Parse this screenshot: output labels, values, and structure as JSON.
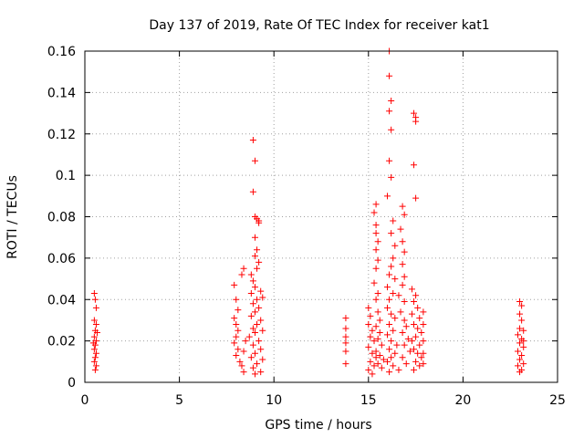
{
  "chart_data": {
    "type": "scatter",
    "title": "Day 137 of 2019, Rate Of TEC Index for receiver kat1",
    "xlabel": "GPS time / hours",
    "ylabel": "ROTI / TECUs",
    "xlim": [
      0,
      25
    ],
    "ylim": [
      0,
      0.16
    ],
    "grid": true,
    "marker": "+",
    "color": "#ff0000",
    "x_ticks": [
      0,
      5,
      10,
      15,
      20,
      25
    ],
    "x_tick_labels": [
      "0",
      "5",
      "10",
      "15",
      "20",
      "25"
    ],
    "y_ticks": [
      0,
      0.02,
      0.04,
      0.06,
      0.08,
      0.1,
      0.12,
      0.14,
      0.16
    ],
    "y_tick_labels": [
      "0",
      "0.02",
      "0.04",
      "0.06",
      "0.08",
      "0.1",
      "0.12",
      "0.14",
      "0.16"
    ],
    "series": [
      {
        "name": "ROTI",
        "points": [
          [
            0.5,
            0.043
          ],
          [
            0.55,
            0.04
          ],
          [
            0.6,
            0.036
          ],
          [
            0.5,
            0.03
          ],
          [
            0.6,
            0.028
          ],
          [
            0.55,
            0.025
          ],
          [
            0.5,
            0.022
          ],
          [
            0.6,
            0.02
          ],
          [
            0.55,
            0.018
          ],
          [
            0.5,
            0.016
          ],
          [
            0.6,
            0.014
          ],
          [
            0.55,
            0.012
          ],
          [
            0.5,
            0.01
          ],
          [
            0.6,
            0.008
          ],
          [
            0.55,
            0.006
          ],
          [
            0.65,
            0.024
          ],
          [
            0.45,
            0.019
          ],
          [
            7.9,
            0.047
          ],
          [
            8.0,
            0.04
          ],
          [
            8.1,
            0.035
          ],
          [
            7.9,
            0.031
          ],
          [
            8.0,
            0.028
          ],
          [
            8.1,
            0.025
          ],
          [
            8.0,
            0.022
          ],
          [
            7.9,
            0.019
          ],
          [
            8.1,
            0.016
          ],
          [
            8.0,
            0.013
          ],
          [
            8.2,
            0.01
          ],
          [
            8.3,
            0.008
          ],
          [
            8.4,
            0.005
          ],
          [
            8.3,
            0.052
          ],
          [
            8.4,
            0.055
          ],
          [
            8.5,
            0.02
          ],
          [
            8.4,
            0.015
          ],
          [
            8.9,
            0.117
          ],
          [
            9.0,
            0.107
          ],
          [
            8.9,
            0.092
          ],
          [
            9.0,
            0.08
          ],
          [
            9.1,
            0.079
          ],
          [
            9.2,
            0.078
          ],
          [
            9.2,
            0.077
          ],
          [
            9.0,
            0.07
          ],
          [
            9.1,
            0.064
          ],
          [
            9.0,
            0.061
          ],
          [
            9.2,
            0.058
          ],
          [
            9.1,
            0.055
          ],
          [
            8.8,
            0.052
          ],
          [
            8.9,
            0.049
          ],
          [
            9.0,
            0.046
          ],
          [
            8.8,
            0.043
          ],
          [
            9.3,
            0.044
          ],
          [
            9.4,
            0.041
          ],
          [
            9.1,
            0.04
          ],
          [
            8.9,
            0.038
          ],
          [
            9.2,
            0.036
          ],
          [
            9.0,
            0.034
          ],
          [
            8.8,
            0.032
          ],
          [
            9.3,
            0.03
          ],
          [
            9.1,
            0.028
          ],
          [
            8.9,
            0.026
          ],
          [
            9.4,
            0.025
          ],
          [
            9.0,
            0.024
          ],
          [
            8.7,
            0.022
          ],
          [
            9.2,
            0.02
          ],
          [
            8.9,
            0.018
          ],
          [
            9.3,
            0.016
          ],
          [
            9.0,
            0.014
          ],
          [
            8.8,
            0.012
          ],
          [
            9.4,
            0.011
          ],
          [
            9.1,
            0.009
          ],
          [
            8.9,
            0.007
          ],
          [
            9.3,
            0.005
          ],
          [
            9.0,
            0.004
          ],
          [
            13.8,
            0.031
          ],
          [
            13.8,
            0.026
          ],
          [
            13.8,
            0.022
          ],
          [
            13.8,
            0.019
          ],
          [
            13.8,
            0.015
          ],
          [
            13.8,
            0.009
          ],
          [
            15.0,
            0.036
          ],
          [
            15.1,
            0.032
          ],
          [
            15.0,
            0.028
          ],
          [
            15.2,
            0.025
          ],
          [
            15.1,
            0.022
          ],
          [
            15.3,
            0.02
          ],
          [
            15.0,
            0.017
          ],
          [
            15.2,
            0.014
          ],
          [
            15.4,
            0.012
          ],
          [
            15.1,
            0.01
          ],
          [
            15.3,
            0.008
          ],
          [
            15.0,
            0.006
          ],
          [
            15.2,
            0.004
          ],
          [
            15.5,
            0.034
          ],
          [
            15.6,
            0.03
          ],
          [
            15.4,
            0.027
          ],
          [
            15.6,
            0.024
          ],
          [
            15.5,
            0.021
          ],
          [
            15.7,
            0.018
          ],
          [
            15.4,
            0.015
          ],
          [
            15.6,
            0.013
          ],
          [
            15.8,
            0.011
          ],
          [
            15.5,
            0.009
          ],
          [
            15.7,
            0.007
          ],
          [
            15.4,
            0.086
          ],
          [
            15.3,
            0.082
          ],
          [
            15.4,
            0.076
          ],
          [
            15.4,
            0.072
          ],
          [
            15.5,
            0.068
          ],
          [
            15.4,
            0.064
          ],
          [
            15.5,
            0.059
          ],
          [
            15.4,
            0.055
          ],
          [
            15.3,
            0.048
          ],
          [
            15.5,
            0.043
          ],
          [
            15.4,
            0.04
          ],
          [
            16.1,
            0.16
          ],
          [
            16.1,
            0.148
          ],
          [
            16.2,
            0.136
          ],
          [
            16.1,
            0.131
          ],
          [
            16.2,
            0.122
          ],
          [
            16.1,
            0.107
          ],
          [
            16.2,
            0.099
          ],
          [
            16.0,
            0.09
          ],
          [
            16.3,
            0.078
          ],
          [
            16.2,
            0.072
          ],
          [
            16.4,
            0.066
          ],
          [
            16.3,
            0.06
          ],
          [
            16.2,
            0.056
          ],
          [
            16.1,
            0.052
          ],
          [
            16.4,
            0.05
          ],
          [
            16.0,
            0.046
          ],
          [
            16.3,
            0.043
          ],
          [
            16.1,
            0.04
          ],
          [
            16.8,
            0.085
          ],
          [
            16.9,
            0.081
          ],
          [
            16.7,
            0.074
          ],
          [
            16.8,
            0.068
          ],
          [
            16.9,
            0.063
          ],
          [
            16.8,
            0.057
          ],
          [
            16.9,
            0.051
          ],
          [
            16.8,
            0.047
          ],
          [
            16.6,
            0.042
          ],
          [
            16.9,
            0.039
          ],
          [
            16.0,
            0.036
          ],
          [
            16.2,
            0.033
          ],
          [
            16.4,
            0.031
          ],
          [
            16.1,
            0.028
          ],
          [
            16.3,
            0.025
          ],
          [
            16.0,
            0.023
          ],
          [
            16.2,
            0.02
          ],
          [
            16.5,
            0.018
          ],
          [
            16.1,
            0.016
          ],
          [
            16.4,
            0.014
          ],
          [
            16.2,
            0.012
          ],
          [
            16.0,
            0.01
          ],
          [
            16.3,
            0.008
          ],
          [
            16.6,
            0.006
          ],
          [
            16.1,
            0.005
          ],
          [
            16.7,
            0.034
          ],
          [
            16.9,
            0.03
          ],
          [
            17.0,
            0.027
          ],
          [
            16.8,
            0.024
          ],
          [
            17.1,
            0.021
          ],
          [
            16.9,
            0.018
          ],
          [
            17.2,
            0.015
          ],
          [
            16.8,
            0.012
          ],
          [
            17.0,
            0.009
          ],
          [
            17.4,
            0.13
          ],
          [
            17.5,
            0.128
          ],
          [
            17.5,
            0.126
          ],
          [
            17.4,
            0.105
          ],
          [
            17.5,
            0.089
          ],
          [
            17.3,
            0.045
          ],
          [
            17.5,
            0.042
          ],
          [
            17.4,
            0.039
          ],
          [
            17.6,
            0.036
          ],
          [
            17.3,
            0.033
          ],
          [
            17.7,
            0.031
          ],
          [
            17.4,
            0.028
          ],
          [
            17.6,
            0.026
          ],
          [
            17.8,
            0.024
          ],
          [
            17.5,
            0.022
          ],
          [
            17.3,
            0.02
          ],
          [
            17.7,
            0.018
          ],
          [
            17.4,
            0.016
          ],
          [
            17.6,
            0.014
          ],
          [
            17.8,
            0.012
          ],
          [
            17.5,
            0.01
          ],
          [
            17.7,
            0.008
          ],
          [
            17.4,
            0.006
          ],
          [
            17.9,
            0.034
          ],
          [
            17.9,
            0.028
          ],
          [
            17.9,
            0.02
          ],
          [
            17.9,
            0.014
          ],
          [
            17.9,
            0.009
          ],
          [
            23.0,
            0.039
          ],
          [
            23.1,
            0.037
          ],
          [
            23.0,
            0.033
          ],
          [
            23.1,
            0.03
          ],
          [
            23.0,
            0.026
          ],
          [
            23.2,
            0.025
          ],
          [
            22.9,
            0.023
          ],
          [
            23.1,
            0.021
          ],
          [
            23.0,
            0.019
          ],
          [
            23.2,
            0.017
          ],
          [
            22.9,
            0.015
          ],
          [
            23.1,
            0.013
          ],
          [
            23.0,
            0.011
          ],
          [
            23.2,
            0.009
          ],
          [
            22.9,
            0.008
          ],
          [
            23.1,
            0.006
          ],
          [
            23.0,
            0.005
          ],
          [
            23.2,
            0.02
          ]
        ]
      }
    ]
  }
}
